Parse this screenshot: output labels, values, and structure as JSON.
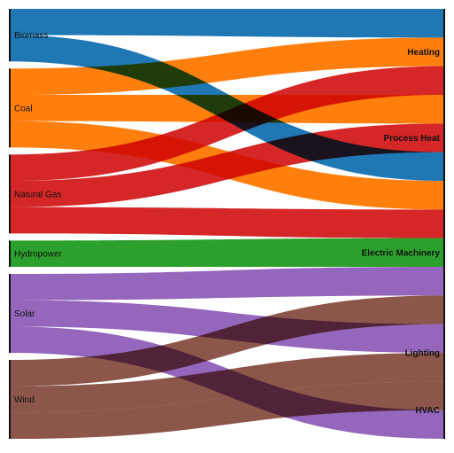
{
  "chart_data": {
    "type": "sankey",
    "sources": [
      {
        "id": "biomass",
        "label": "Biomass",
        "color": "#1f77b4"
      },
      {
        "id": "coal",
        "label": "Coal",
        "color": "#ff7f0e"
      },
      {
        "id": "natural_gas",
        "label": "Natural Gas",
        "color": "#d62728"
      },
      {
        "id": "hydropower",
        "label": "Hydropower",
        "color": "#2ca02c"
      },
      {
        "id": "solar",
        "label": "Solar",
        "color": "#9467bd"
      },
      {
        "id": "wind",
        "label": "Wind",
        "color": "#8c564b"
      }
    ],
    "targets": [
      {
        "id": "heating",
        "label": "Heating"
      },
      {
        "id": "process_heat",
        "label": "Process Heat"
      },
      {
        "id": "electric_machinery",
        "label": "Electric Machinery"
      },
      {
        "id": "lighting",
        "label": "Lighting"
      },
      {
        "id": "hvac",
        "label": "HVAC"
      }
    ],
    "links": [
      {
        "source": "biomass",
        "target": "heating",
        "value": 27
      },
      {
        "source": "biomass",
        "target": "process_heat",
        "value": 27
      },
      {
        "source": "coal",
        "target": "heating",
        "value": 27
      },
      {
        "source": "coal",
        "target": "process_heat",
        "value": 27
      },
      {
        "source": "coal",
        "target": "electric_machinery",
        "value": 27
      },
      {
        "source": "natural_gas",
        "target": "heating",
        "value": 27
      },
      {
        "source": "natural_gas",
        "target": "process_heat",
        "value": 27
      },
      {
        "source": "natural_gas",
        "target": "electric_machinery",
        "value": 27
      },
      {
        "source": "hydropower",
        "target": "electric_machinery",
        "value": 27
      },
      {
        "source": "solar",
        "target": "electric_machinery",
        "value": 27
      },
      {
        "source": "solar",
        "target": "lighting",
        "value": 27
      },
      {
        "source": "solar",
        "target": "hvac",
        "value": 27
      },
      {
        "source": "wind",
        "target": "electric_machinery",
        "value": 27
      },
      {
        "source": "wind",
        "target": "lighting",
        "value": 27
      },
      {
        "source": "wind",
        "target": "hvac",
        "value": 27
      }
    ]
  }
}
